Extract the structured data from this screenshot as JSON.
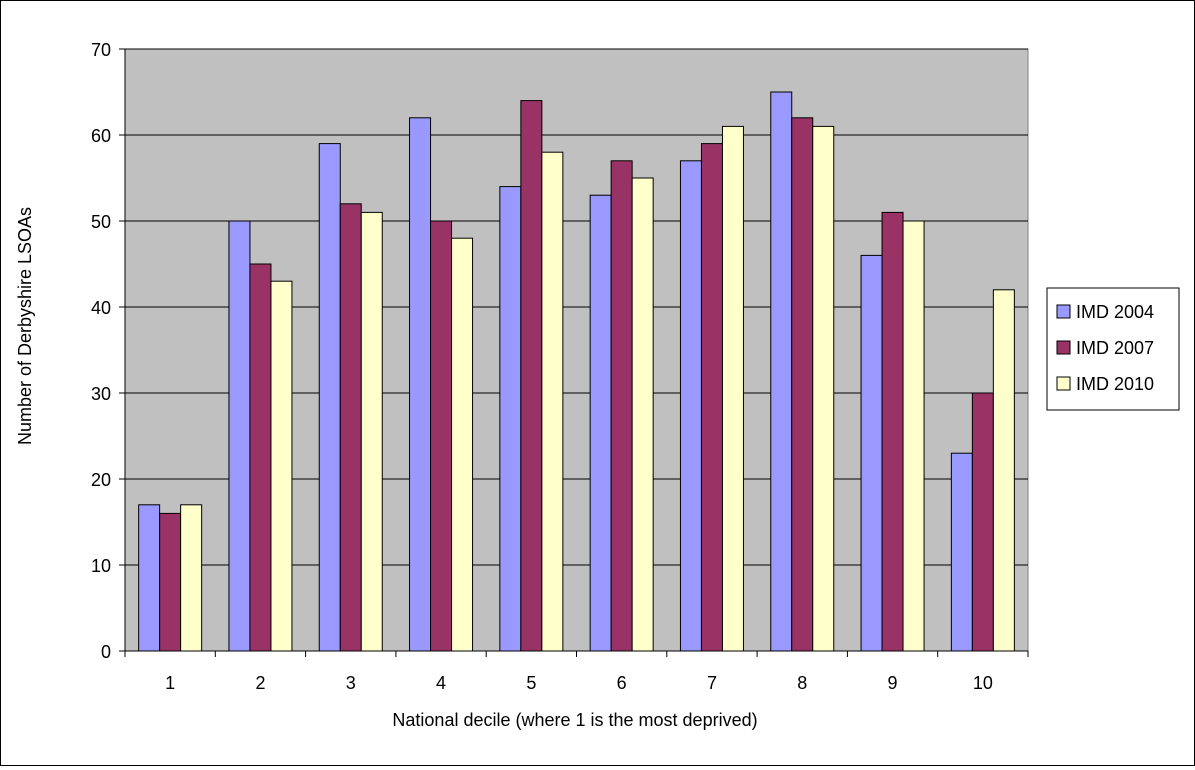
{
  "chart_data": {
    "type": "bar",
    "title": "",
    "xlabel": "National decile (where 1 is the most deprived)",
    "ylabel": "Number of Derbyshire LSOAs",
    "categories": [
      "1",
      "2",
      "3",
      "4",
      "5",
      "6",
      "7",
      "8",
      "9",
      "10"
    ],
    "ylim": [
      0,
      70
    ],
    "yticks": [
      0,
      10,
      20,
      30,
      40,
      50,
      60,
      70
    ],
    "grid": true,
    "legend_position": "right",
    "plot_background": "#c0c0c0",
    "series": [
      {
        "name": "IMD 2004",
        "color": "#9999ff",
        "values": [
          17,
          50,
          59,
          62,
          54,
          53,
          57,
          65,
          46,
          23
        ]
      },
      {
        "name": "IMD 2007",
        "color": "#993366",
        "values": [
          16,
          45,
          52,
          50,
          64,
          57,
          59,
          62,
          51,
          30
        ]
      },
      {
        "name": "IMD 2010",
        "color": "#ffffcc",
        "values": [
          17,
          43,
          51,
          48,
          58,
          55,
          61,
          61,
          50,
          42
        ]
      }
    ]
  }
}
